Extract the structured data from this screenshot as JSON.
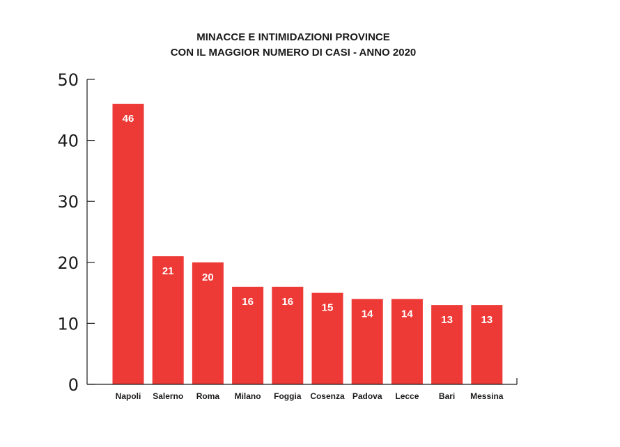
{
  "chart_data": {
    "type": "bar",
    "title_lines": [
      "MINACCE E INTIMIDAZIONI PROVINCE",
      "CON IL MAGGIOR NUMERO DI CASI - ANNO 2020"
    ],
    "categories": [
      "Napoli",
      "Salerno",
      "Roma",
      "Milano",
      "Foggia",
      "Cosenza",
      "Padova",
      "Lecce",
      "Bari",
      "Messina"
    ],
    "values": [
      46,
      21,
      20,
      16,
      16,
      15,
      14,
      14,
      13,
      13
    ],
    "data_labels": [
      "46",
      "21",
      "20",
      "16",
      "16",
      "15",
      "14",
      "14",
      "13",
      "13"
    ],
    "ylim": [
      0,
      50
    ],
    "yticks": [
      0,
      10,
      20,
      30,
      40,
      50
    ],
    "ytick_labels": [
      "0",
      "10",
      "20",
      "30",
      "40",
      "50"
    ],
    "xlabel": "",
    "ylabel": "",
    "grid": false,
    "legend": "none",
    "bar_color": "#ee3a36",
    "text_color": "#1a1a1a",
    "data_label_color": "#ffffff"
  }
}
